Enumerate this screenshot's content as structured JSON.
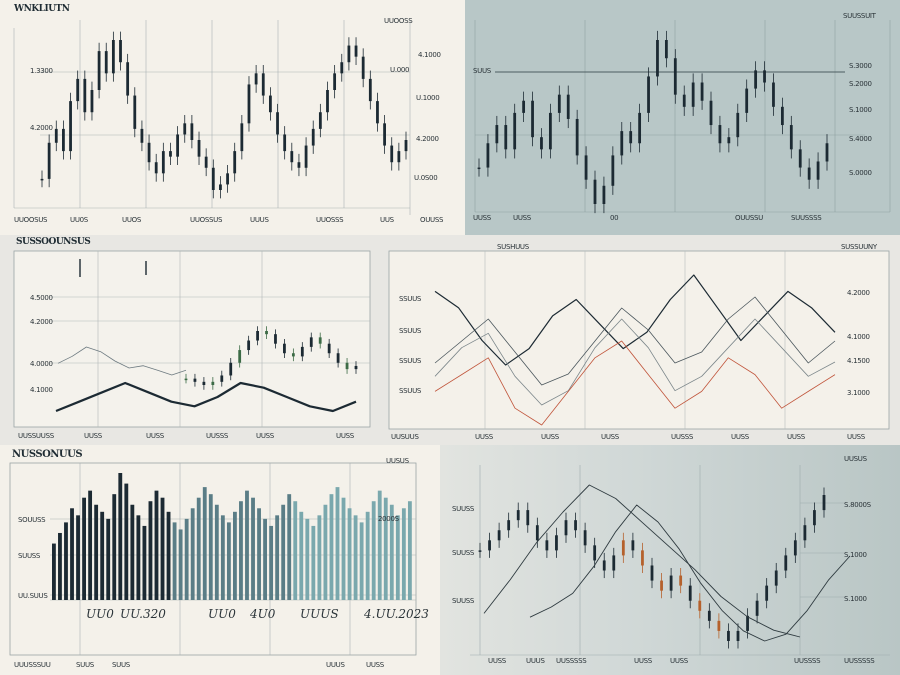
{
  "colors": {
    "ink": "#1c2a33",
    "teal": "#4a7f8a",
    "green": "#3c6b46",
    "orange": "#b5612c",
    "red": "#c0543a",
    "slate": "#b8c7c7",
    "cream": "#f4f1ea"
  },
  "panels": {
    "top_left": {
      "title": "WNKLIUTN",
      "corner": "UUOOSS",
      "ylabels": [
        "1.3300",
        "4.2000"
      ],
      "right_labels": [
        "4.1000",
        "U.000",
        "U.1000",
        "4.2000",
        "U.0S00"
      ],
      "xlabels": [
        "UUOOSUS",
        "UU0S",
        "UUOS",
        "UUOSSUS",
        "UUUS",
        "UUOSSS",
        "UUS",
        "OUUSS"
      ]
    },
    "top_right": {
      "title": "SUUSSUIT",
      "ylabels": [
        "SUUS"
      ],
      "right_labels": [
        "S.3000",
        "S.2000",
        "S.1000",
        "S.4000",
        "S.0000"
      ],
      "xlabels": [
        "UUSS",
        "UUSS",
        "00",
        "OUUSSU",
        "SUUSSSS"
      ]
    },
    "mid_left": {
      "title": "SUSSOOUNSUS",
      "ylabels": [
        "4.5000",
        "4.2000",
        "4.0000",
        "4.1000"
      ],
      "xlabels": [
        "UUSSUUSS",
        "UUSS",
        "UUSS",
        "UUSSS",
        "UUSS",
        "UUSS"
      ]
    },
    "mid_right": {
      "title": "SUSHUUS",
      "corner": "SUSSUUNY",
      "ylabels": [
        "SSUUS",
        "SSUUS",
        "SSUUS",
        "SSUUS"
      ],
      "right_labels": [
        "4.2000",
        "4.1000",
        "4.1500",
        "3.1000"
      ],
      "xlabels": [
        "UUSUUS",
        "UUSS",
        "UUSS",
        "UUSS",
        "UUSSS",
        "UUSS",
        "UUSS",
        "UUSS"
      ]
    },
    "bot_left": {
      "title": "NUSSONUUS",
      "corner": "UUSUS",
      "ylabels": [
        "SOUUSS",
        "SUUSS",
        "UU.SUUS"
      ],
      "right_labels": [
        "2000S"
      ],
      "big_labels": [
        "UU0",
        "UU.320",
        "UU0",
        "4U0",
        "UUUS",
        "4.UU.2023"
      ],
      "xlabels": [
        "UUUSSSUU",
        "SUUS",
        "SUUS",
        "UUUS",
        "UUSS"
      ]
    },
    "bot_right": {
      "title": "UUSUS",
      "ylabels": [
        "SUUSS",
        "SUUSS",
        "SUUSS"
      ],
      "right_labels": [
        "S.8000S",
        "S.1000",
        "S.1000"
      ],
      "xlabels": [
        "UUSS",
        "UUUS",
        "UUSSSSS",
        "UUSS",
        "UUSS",
        "UUSSSS",
        "UUSSSSS"
      ]
    }
  },
  "chart_data": [
    {
      "type": "line",
      "title": "WNKLIUTN",
      "series": [
        {
          "values": [
            42,
            55,
            60,
            52,
            70,
            78,
            66,
            74,
            88,
            80,
            92,
            84,
            72,
            60,
            55,
            48,
            44,
            52,
            50,
            58,
            62,
            56,
            50,
            46,
            38,
            40,
            44,
            52,
            62,
            76,
            80,
            72,
            66,
            58,
            52,
            48,
            46,
            54,
            60,
            66,
            74,
            80,
            84,
            90,
            86,
            78,
            70,
            62,
            54,
            48,
            52,
            56
          ]
        }
      ]
    },
    {
      "type": "line",
      "title": "SUUSSUIT",
      "series": [
        {
          "values": [
            52,
            60,
            66,
            58,
            70,
            74,
            62,
            58,
            70,
            76,
            68,
            56,
            48,
            40,
            46,
            56,
            64,
            60,
            70,
            82,
            94,
            88,
            76,
            72,
            80,
            74,
            66,
            60,
            62,
            70,
            78,
            84,
            80,
            72,
            66,
            58,
            52,
            48,
            54,
            60
          ]
        }
      ]
    },
    {
      "type": "line",
      "title": "SUSSOOUNSUS",
      "series": [
        {
          "values": [
            30,
            28,
            26,
            28,
            32,
            40,
            48,
            54,
            60,
            58,
            52,
            46,
            44,
            50,
            56,
            52,
            46,
            40,
            36,
            38
          ]
        },
        {
          "values": [
            10,
            14,
            18,
            22,
            18,
            14,
            12,
            16,
            22,
            20,
            16,
            12,
            10,
            14
          ]
        }
      ]
    },
    {
      "type": "line",
      "title": "SUSHUUS",
      "series": [
        {
          "values": [
            62,
            58,
            50,
            44,
            48,
            56,
            60,
            54,
            48,
            52,
            60,
            66,
            58,
            50,
            56,
            62,
            58,
            52
          ]
        },
        {
          "values": [
            40,
            44,
            48,
            42,
            36,
            38,
            44,
            50,
            46,
            40,
            42,
            48,
            52,
            46,
            40,
            44
          ]
        },
        {
          "values": [
            30,
            34,
            36,
            30,
            26,
            28,
            34,
            38,
            34,
            28,
            30,
            34,
            38,
            34,
            30,
            32
          ]
        },
        {
          "values": [
            22,
            24,
            26,
            20,
            18,
            22,
            26,
            28,
            24,
            20,
            22,
            26,
            24,
            20,
            22,
            24
          ]
        }
      ]
    },
    {
      "type": "bar",
      "title": "NUSSONUUS",
      "series": [
        {
          "values": [
            32,
            38,
            44,
            52,
            48,
            58,
            62,
            54,
            50,
            46,
            60,
            72,
            66,
            54,
            48,
            42,
            56,
            62,
            58,
            50,
            44,
            40,
            46,
            52,
            58,
            64,
            60,
            54,
            48,
            44,
            50,
            56,
            62,
            58,
            52,
            46,
            42,
            48,
            54,
            60,
            56,
            50,
            46,
            42,
            48,
            54,
            60,
            64,
            58,
            52,
            48,
            44,
            50,
            56,
            62,
            58,
            54,
            48,
            52,
            56
          ]
        }
      ]
    },
    {
      "type": "line",
      "title": "UUSUS",
      "series": [
        {
          "values": [
            54,
            58,
            62,
            66,
            70,
            64,
            58,
            54,
            60,
            66,
            62,
            56,
            50,
            46,
            52,
            58,
            54,
            48,
            42,
            38,
            44,
            40,
            34,
            30,
            26,
            22,
            18,
            22,
            28,
            34,
            40,
            46,
            52,
            58,
            64,
            70,
            76
          ]
        },
        {
          "values": [
            20,
            40,
            62,
            80,
            96,
            88,
            74,
            60,
            46,
            30,
            18,
            10,
            6
          ]
        }
      ]
    }
  ]
}
